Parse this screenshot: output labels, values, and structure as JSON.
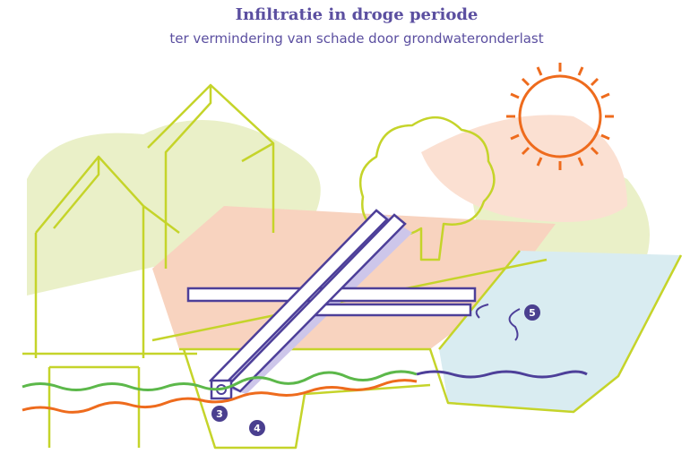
{
  "header": {
    "title": "Infiltratie in droge periode",
    "subtitle": "ter vermindering van schade door grondwateronderlast"
  },
  "markers": [
    {
      "label": "3"
    },
    {
      "label": "4"
    },
    {
      "label": "5"
    }
  ]
}
